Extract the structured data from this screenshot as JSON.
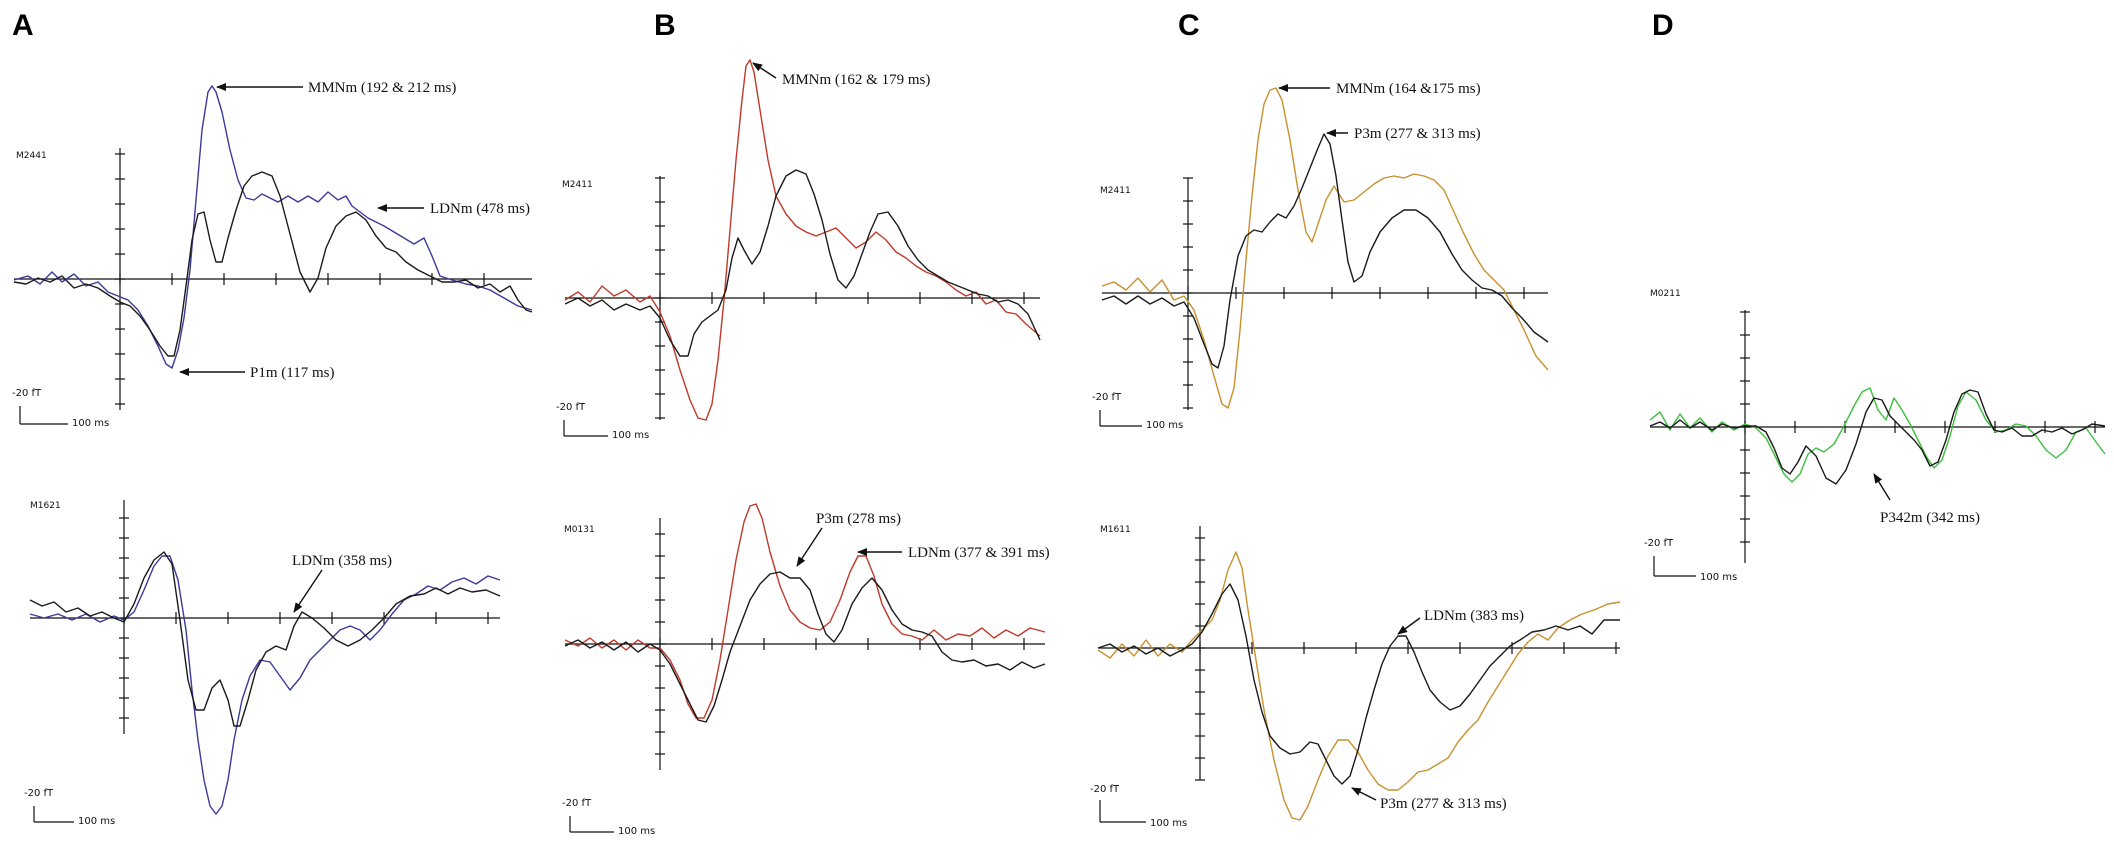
{
  "colors": {
    "black": "#1a1a1a",
    "blue": "#3a3a9a",
    "red": "#c0392b",
    "orange": "#c8912e",
    "green": "#3cbf3c"
  },
  "scale_bar": {
    "amplitude_label": "-20 fT",
    "time_label": "100 ms"
  },
  "panels": [
    {
      "letter": "A",
      "plots": [
        {
          "sensor": "M2441",
          "annotations": [
            {
              "text": "MMNm (192 & 212 ms)"
            },
            {
              "text": "LDNm (478 ms)"
            },
            {
              "text": "P1m (117 ms)"
            }
          ]
        },
        {
          "sensor": "M1621",
          "annotations": [
            {
              "text": "LDNm (358 ms)"
            }
          ]
        }
      ]
    },
    {
      "letter": "B",
      "plots": [
        {
          "sensor": "M2411",
          "annotations": [
            {
              "text": "MMNm (162 & 179 ms)"
            }
          ]
        },
        {
          "sensor": "M0131",
          "annotations": [
            {
              "text": "P3m (278 ms)"
            },
            {
              "text": "LDNm (377 & 391 ms)"
            }
          ]
        }
      ]
    },
    {
      "letter": "C",
      "plots": [
        {
          "sensor": "M2411",
          "annotations": [
            {
              "text": "MMNm (164 &175 ms)"
            },
            {
              "text": "P3m (277 & 313 ms)"
            }
          ]
        },
        {
          "sensor": "M1611",
          "annotations": [
            {
              "text": "LDNm (383 ms)"
            },
            {
              "text": "P3m (277 & 313 ms)"
            }
          ]
        }
      ]
    },
    {
      "letter": "D",
      "plots": [
        {
          "sensor": "M0211",
          "annotations": [
            {
              "text": "P342m (342 ms)"
            }
          ]
        }
      ]
    }
  ]
}
